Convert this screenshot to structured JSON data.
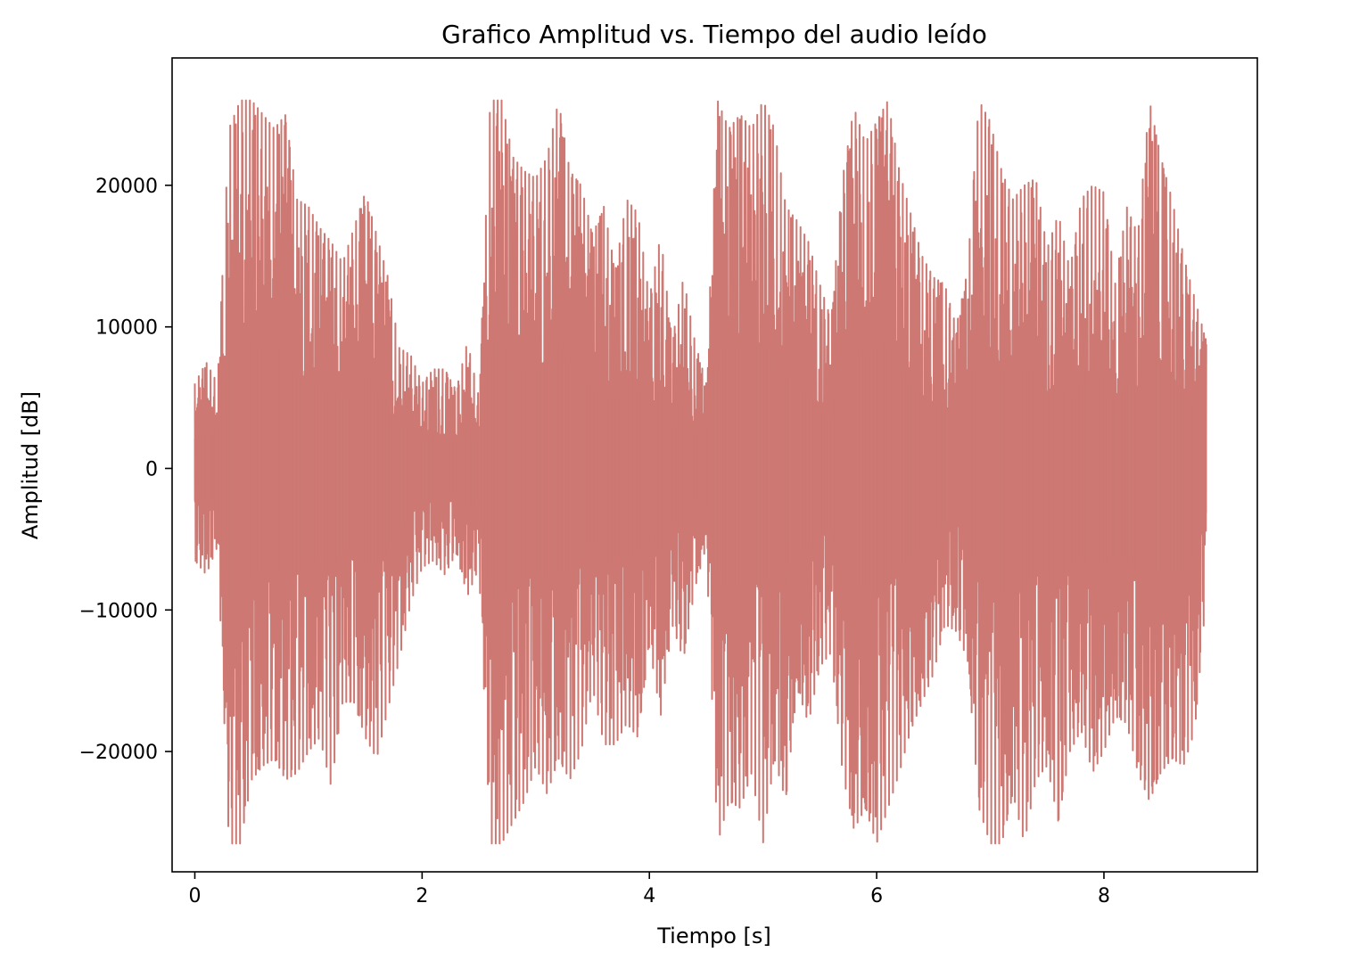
{
  "chart_data": {
    "type": "line",
    "title": "Grafico Amplitud vs. Tiempo del audio leído",
    "xlabel": "Tiempo [s]",
    "ylabel": "Amplitud [dB]",
    "xlim": [
      -0.2,
      9.35
    ],
    "ylim": [
      -28500,
      29000
    ],
    "xticks": [
      0,
      2,
      4,
      6,
      8
    ],
    "xtick_labels": [
      "0",
      "2",
      "4",
      "6",
      "8"
    ],
    "yticks": [
      -20000,
      -10000,
      0,
      10000,
      20000
    ],
    "ytick_labels": [
      "−20000",
      "−10000",
      "0",
      "10000",
      "20000"
    ],
    "grid": false,
    "series": [
      {
        "color": "#cd7872",
        "x": [
          0.0,
          0.1,
          0.2,
          0.3,
          0.4,
          0.5,
          0.6,
          0.7,
          0.8,
          0.9,
          1.0,
          1.1,
          1.2,
          1.3,
          1.4,
          1.5,
          1.6,
          1.7,
          1.8,
          1.9,
          2.0,
          2.1,
          2.2,
          2.3,
          2.4,
          2.5,
          2.6,
          2.7,
          2.8,
          2.9,
          3.0,
          3.1,
          3.2,
          3.3,
          3.4,
          3.5,
          3.6,
          3.7,
          3.8,
          3.9,
          4.0,
          4.1,
          4.2,
          4.3,
          4.4,
          4.5,
          4.6,
          4.7,
          4.8,
          4.9,
          5.0,
          5.1,
          5.2,
          5.3,
          5.4,
          5.5,
          5.6,
          5.7,
          5.8,
          5.9,
          6.0,
          6.1,
          6.2,
          6.3,
          6.4,
          6.5,
          6.6,
          6.7,
          6.8,
          6.9,
          7.0,
          7.1,
          7.2,
          7.3,
          7.4,
          7.5,
          7.6,
          7.7,
          7.8,
          7.9,
          8.0,
          8.1,
          8.2,
          8.3,
          8.4,
          8.5,
          8.6,
          8.7,
          8.8,
          8.9
        ],
        "y_max": [
          6000,
          7500,
          6000,
          24000,
          26000,
          26000,
          25000,
          24000,
          25000,
          19000,
          18500,
          17000,
          16000,
          14500,
          17000,
          19500,
          16500,
          13500,
          8500,
          8000,
          6000,
          7000,
          7000,
          5500,
          9000,
          5000,
          26000,
          26000,
          22000,
          21000,
          20500,
          22000,
          26000,
          21000,
          20000,
          16500,
          18500,
          14000,
          19000,
          18000,
          12000,
          16500,
          9000,
          13500,
          9000,
          6000,
          26000,
          24000,
          25000,
          24000,
          26000,
          24000,
          18500,
          17500,
          16000,
          13000,
          10500,
          20500,
          25500,
          23000,
          24500,
          26000,
          21000,
          18000,
          15000,
          13500,
          13000,
          10000,
          14000,
          26000,
          24500,
          21000,
          19000,
          20000,
          20500,
          15500,
          18000,
          14000,
          19000,
          20000,
          19500,
          13000,
          18500,
          16500,
          26000,
          22000,
          19000,
          15000,
          12000,
          9000
        ],
        "y_min": [
          -6500,
          -7500,
          -5500,
          -26500,
          -26500,
          -22000,
          -21000,
          -20500,
          -22000,
          -21500,
          -20000,
          -19000,
          -22500,
          -16500,
          -16500,
          -19000,
          -20500,
          -17000,
          -13500,
          -9500,
          -7000,
          -6500,
          -7500,
          -6000,
          -9000,
          -7000,
          -26500,
          -26500,
          -25000,
          -23500,
          -21000,
          -23000,
          -20500,
          -22000,
          -20000,
          -15500,
          -19500,
          -19500,
          -18000,
          -19000,
          -12500,
          -17500,
          -11000,
          -13500,
          -8500,
          -5500,
          -26500,
          -23500,
          -24000,
          -21500,
          -26500,
          -20500,
          -23500,
          -15500,
          -18000,
          -14000,
          -13000,
          -21500,
          -25500,
          -24000,
          -26500,
          -24000,
          -21500,
          -18500,
          -16500,
          -14500,
          -11000,
          -11500,
          -13500,
          -24000,
          -26500,
          -26500,
          -23000,
          -26500,
          -22000,
          -21000,
          -25000,
          -20000,
          -18500,
          -21500,
          -20000,
          -17500,
          -18000,
          -21500,
          -23500,
          -21500,
          -20500,
          -21000,
          -18500,
          -9000
        ]
      }
    ]
  }
}
